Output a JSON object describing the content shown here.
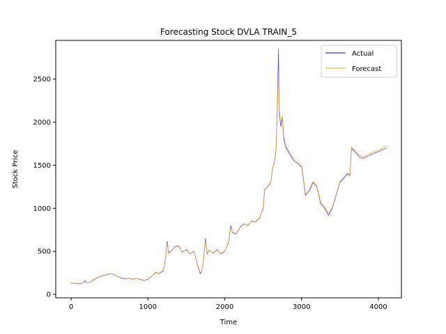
{
  "chart_data": {
    "type": "line",
    "title": "Forecasting Stock DVLA TRAIN_5",
    "xlabel": "Time",
    "ylabel": "Stock Price",
    "xlim": [
      -200,
      4300
    ],
    "ylim": [
      -40,
      2950
    ],
    "xticks": [
      0,
      1000,
      2000,
      3000,
      4000
    ],
    "yticks": [
      0,
      500,
      1000,
      1500,
      2000,
      2500
    ],
    "grid": false,
    "legend_position": "top-right",
    "series": [
      {
        "name": "Actual",
        "color": "#0000ff",
        "points": [
          [
            0,
            125
          ],
          [
            50,
            130
          ],
          [
            100,
            122
          ],
          [
            150,
            128
          ],
          [
            180,
            160
          ],
          [
            200,
            135
          ],
          [
            250,
            140
          ],
          [
            300,
            175
          ],
          [
            350,
            195
          ],
          [
            400,
            215
          ],
          [
            450,
            225
          ],
          [
            500,
            238
          ],
          [
            550,
            235
          ],
          [
            600,
            210
          ],
          [
            650,
            190
          ],
          [
            700,
            180
          ],
          [
            750,
            190
          ],
          [
            800,
            175
          ],
          [
            850,
            185
          ],
          [
            900,
            175
          ],
          [
            950,
            160
          ],
          [
            1000,
            175
          ],
          [
            1050,
            210
          ],
          [
            1100,
            255
          ],
          [
            1150,
            240
          ],
          [
            1200,
            275
          ],
          [
            1230,
            420
          ],
          [
            1250,
            620
          ],
          [
            1270,
            480
          ],
          [
            1300,
            500
          ],
          [
            1350,
            555
          ],
          [
            1400,
            560
          ],
          [
            1450,
            490
          ],
          [
            1500,
            520
          ],
          [
            1550,
            470
          ],
          [
            1600,
            500
          ],
          [
            1650,
            330
          ],
          [
            1680,
            240
          ],
          [
            1700,
            260
          ],
          [
            1720,
            380
          ],
          [
            1750,
            650
          ],
          [
            1770,
            470
          ],
          [
            1800,
            510
          ],
          [
            1850,
            480
          ],
          [
            1900,
            520
          ],
          [
            1950,
            470
          ],
          [
            2000,
            500
          ],
          [
            2050,
            600
          ],
          [
            2080,
            800
          ],
          [
            2100,
            720
          ],
          [
            2150,
            700
          ],
          [
            2200,
            780
          ],
          [
            2250,
            820
          ],
          [
            2300,
            800
          ],
          [
            2350,
            850
          ],
          [
            2400,
            840
          ],
          [
            2450,
            880
          ],
          [
            2500,
            1000
          ],
          [
            2520,
            1220
          ],
          [
            2550,
            1240
          ],
          [
            2600,
            1300
          ],
          [
            2620,
            1450
          ],
          [
            2650,
            1550
          ],
          [
            2670,
            1700
          ],
          [
            2690,
            2400
          ],
          [
            2700,
            2850
          ],
          [
            2710,
            2100
          ],
          [
            2730,
            1950
          ],
          [
            2750,
            2050
          ],
          [
            2770,
            1800
          ],
          [
            2800,
            1700
          ],
          [
            2850,
            1620
          ],
          [
            2900,
            1550
          ],
          [
            2950,
            1520
          ],
          [
            3000,
            1480
          ],
          [
            3030,
            1300
          ],
          [
            3050,
            1150
          ],
          [
            3100,
            1200
          ],
          [
            3150,
            1300
          ],
          [
            3200,
            1250
          ],
          [
            3250,
            1050
          ],
          [
            3300,
            1000
          ],
          [
            3350,
            920
          ],
          [
            3400,
            1000
          ],
          [
            3450,
            1150
          ],
          [
            3500,
            1300
          ],
          [
            3550,
            1350
          ],
          [
            3600,
            1400
          ],
          [
            3630,
            1380
          ],
          [
            3650,
            1700
          ],
          [
            3700,
            1650
          ],
          [
            3750,
            1600
          ],
          [
            3800,
            1580
          ],
          [
            3850,
            1600
          ],
          [
            3900,
            1620
          ],
          [
            3950,
            1640
          ],
          [
            4000,
            1660
          ],
          [
            4050,
            1680
          ],
          [
            4100,
            1700
          ]
        ]
      },
      {
        "name": "Forecast",
        "color": "#ffa500",
        "points": [
          [
            0,
            128
          ],
          [
            50,
            132
          ],
          [
            100,
            125
          ],
          [
            150,
            130
          ],
          [
            180,
            150
          ],
          [
            200,
            138
          ],
          [
            250,
            142
          ],
          [
            300,
            178
          ],
          [
            350,
            198
          ],
          [
            400,
            218
          ],
          [
            450,
            228
          ],
          [
            500,
            240
          ],
          [
            550,
            237
          ],
          [
            600,
            213
          ],
          [
            650,
            193
          ],
          [
            700,
            183
          ],
          [
            750,
            192
          ],
          [
            800,
            178
          ],
          [
            850,
            187
          ],
          [
            900,
            178
          ],
          [
            950,
            163
          ],
          [
            1000,
            178
          ],
          [
            1050,
            212
          ],
          [
            1100,
            250
          ],
          [
            1150,
            245
          ],
          [
            1200,
            280
          ],
          [
            1230,
            410
          ],
          [
            1250,
            600
          ],
          [
            1270,
            490
          ],
          [
            1300,
            505
          ],
          [
            1350,
            550
          ],
          [
            1400,
            555
          ],
          [
            1450,
            495
          ],
          [
            1500,
            515
          ],
          [
            1550,
            475
          ],
          [
            1600,
            495
          ],
          [
            1650,
            340
          ],
          [
            1680,
            250
          ],
          [
            1700,
            265
          ],
          [
            1720,
            370
          ],
          [
            1750,
            620
          ],
          [
            1770,
            480
          ],
          [
            1800,
            505
          ],
          [
            1850,
            485
          ],
          [
            1900,
            515
          ],
          [
            1950,
            475
          ],
          [
            2000,
            505
          ],
          [
            2050,
            590
          ],
          [
            2080,
            780
          ],
          [
            2100,
            725
          ],
          [
            2150,
            705
          ],
          [
            2200,
            775
          ],
          [
            2250,
            815
          ],
          [
            2300,
            805
          ],
          [
            2350,
            845
          ],
          [
            2400,
            845
          ],
          [
            2450,
            885
          ],
          [
            2500,
            990
          ],
          [
            2520,
            1210
          ],
          [
            2550,
            1245
          ],
          [
            2600,
            1305
          ],
          [
            2620,
            1440
          ],
          [
            2650,
            1560
          ],
          [
            2670,
            1690
          ],
          [
            2690,
            2300
          ],
          [
            2700,
            2600
          ],
          [
            2710,
            2150
          ],
          [
            2730,
            1980
          ],
          [
            2750,
            2080
          ],
          [
            2770,
            1830
          ],
          [
            2800,
            1720
          ],
          [
            2850,
            1640
          ],
          [
            2900,
            1570
          ],
          [
            2950,
            1540
          ],
          [
            3000,
            1500
          ],
          [
            3030,
            1320
          ],
          [
            3050,
            1170
          ],
          [
            3100,
            1220
          ],
          [
            3150,
            1310
          ],
          [
            3200,
            1260
          ],
          [
            3250,
            1070
          ],
          [
            3300,
            1020
          ],
          [
            3350,
            940
          ],
          [
            3400,
            1010
          ],
          [
            3450,
            1160
          ],
          [
            3500,
            1310
          ],
          [
            3550,
            1360
          ],
          [
            3600,
            1410
          ],
          [
            3630,
            1390
          ],
          [
            3650,
            1710
          ],
          [
            3700,
            1670
          ],
          [
            3750,
            1620
          ],
          [
            3800,
            1600
          ],
          [
            3850,
            1615
          ],
          [
            3900,
            1640
          ],
          [
            3950,
            1660
          ],
          [
            4000,
            1680
          ],
          [
            4050,
            1700
          ],
          [
            4100,
            1720
          ]
        ]
      }
    ]
  }
}
